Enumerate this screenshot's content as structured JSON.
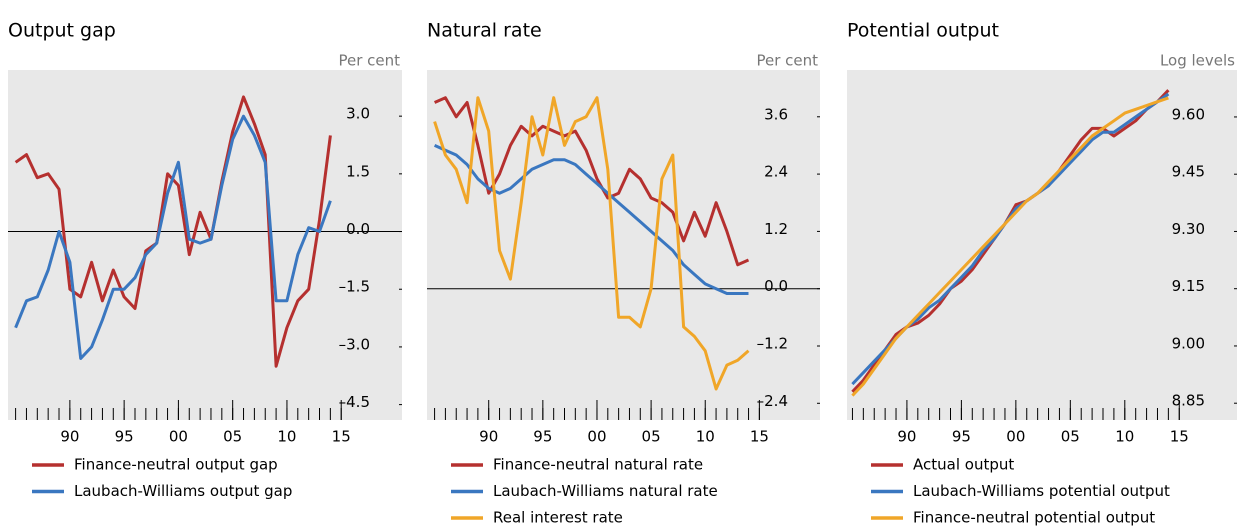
{
  "chart_data": [
    {
      "type": "line",
      "title": "Output gap",
      "unit_label": "Per cent",
      "x": [
        1985,
        1986,
        1987,
        1988,
        1989,
        1990,
        1991,
        1992,
        1993,
        1994,
        1995,
        1996,
        1997,
        1998,
        1999,
        2000,
        2001,
        2002,
        2003,
        2004,
        2005,
        2006,
        2007,
        2008,
        2009,
        2010,
        2011,
        2012,
        2013,
        2014
      ],
      "series": [
        {
          "name": "Finance-neutral output gap",
          "color": "#b5302f",
          "values": [
            1.8,
            2.0,
            1.4,
            1.5,
            1.1,
            -1.5,
            -1.7,
            -0.8,
            -1.8,
            -1.0,
            -1.7,
            -2.0,
            -0.5,
            -0.3,
            1.5,
            1.2,
            -0.6,
            0.5,
            -0.2,
            1.3,
            2.6,
            3.5,
            2.8,
            2.0,
            -3.5,
            -2.5,
            -1.8,
            -1.5,
            0.3,
            2.5
          ]
        },
        {
          "name": "Laubach-Williams output gap",
          "color": "#3a77c0",
          "values": [
            -2.5,
            -1.8,
            -1.7,
            -1.0,
            0.0,
            -0.8,
            -3.3,
            -3.0,
            -2.3,
            -1.5,
            -1.5,
            -1.2,
            -0.6,
            -0.3,
            1.0,
            1.8,
            -0.2,
            -0.3,
            -0.2,
            1.2,
            2.4,
            3.0,
            2.5,
            1.8,
            -1.8,
            -1.8,
            -0.6,
            0.1,
            0.0,
            0.8
          ]
        }
      ],
      "xlim": [
        1984.3,
        2020.6
      ],
      "xticks": [
        {
          "value": 1990,
          "label": "90"
        },
        {
          "value": 1995,
          "label": "95"
        },
        {
          "value": 2000,
          "label": "00"
        },
        {
          "value": 2005,
          "label": "05"
        },
        {
          "value": 2010,
          "label": "10"
        },
        {
          "value": 2015,
          "label": "15"
        }
      ],
      "xminorticks": [
        1985,
        1986,
        1987,
        1988,
        1989,
        1990,
        1991,
        1992,
        1993,
        1994,
        1995,
        1996,
        1997,
        1998,
        1999,
        2000,
        2001,
        2002,
        2003,
        2004,
        2005,
        2006,
        2007,
        2008,
        2009,
        2010,
        2011,
        2012,
        2013,
        2014,
        2015
      ],
      "ylim": [
        -4.9,
        4.2
      ],
      "yticks": [
        {
          "value": 3,
          "label": "3.0"
        },
        {
          "value": 1.5,
          "label": "1.5"
        },
        {
          "value": 0,
          "label": "0.0"
        },
        {
          "value": -1.5,
          "label": "–1.5"
        },
        {
          "value": -3,
          "label": "–3.0"
        },
        {
          "value": -4.5,
          "label": "–4.5"
        }
      ],
      "hline": 0
    },
    {
      "type": "line",
      "title": "Natural rate",
      "unit_label": "Per cent",
      "x": [
        1985,
        1986,
        1987,
        1988,
        1989,
        1990,
        1991,
        1992,
        1993,
        1994,
        1995,
        1996,
        1997,
        1998,
        1999,
        2000,
        2001,
        2002,
        2003,
        2004,
        2005,
        2006,
        2007,
        2008,
        2009,
        2010,
        2011,
        2012,
        2013,
        2014
      ],
      "series": [
        {
          "name": "Finance-neutral natural rate",
          "color": "#b5302f",
          "values": [
            3.9,
            4.0,
            3.6,
            3.9,
            3.0,
            2.0,
            2.4,
            3.0,
            3.4,
            3.2,
            3.4,
            3.3,
            3.2,
            3.3,
            2.9,
            2.3,
            1.9,
            2.0,
            2.5,
            2.3,
            1.9,
            1.8,
            1.6,
            1.0,
            1.6,
            1.1,
            1.8,
            1.2,
            0.5,
            0.6
          ]
        },
        {
          "name": "Laubach-Williams natural rate",
          "color": "#3a77c0",
          "values": [
            3.0,
            2.9,
            2.8,
            2.6,
            2.3,
            2.1,
            2.0,
            2.1,
            2.3,
            2.5,
            2.6,
            2.7,
            2.7,
            2.6,
            2.4,
            2.2,
            2.0,
            1.8,
            1.6,
            1.4,
            1.2,
            1.0,
            0.8,
            0.5,
            0.3,
            0.1,
            0.0,
            -0.1,
            -0.1,
            -0.1
          ]
        },
        {
          "name": "Real interest rate",
          "color": "#f0a628",
          "values": [
            3.5,
            2.8,
            2.5,
            1.8,
            4.0,
            3.3,
            0.8,
            0.2,
            1.8,
            3.6,
            2.8,
            4.0,
            3.0,
            3.5,
            3.6,
            4.0,
            2.5,
            -0.6,
            -0.6,
            -0.8,
            0.0,
            2.3,
            2.8,
            -0.8,
            -1.0,
            -1.3,
            -2.1,
            -1.6,
            -1.5,
            -1.3
          ]
        }
      ],
      "xlim": [
        1984.3,
        2020.6
      ],
      "xticks": [
        {
          "value": 1990,
          "label": "90"
        },
        {
          "value": 1995,
          "label": "95"
        },
        {
          "value": 2000,
          "label": "00"
        },
        {
          "value": 2005,
          "label": "05"
        },
        {
          "value": 2010,
          "label": "10"
        },
        {
          "value": 2015,
          "label": "15"
        }
      ],
      "xminorticks": [
        1985,
        1986,
        1987,
        1988,
        1989,
        1990,
        1991,
        1992,
        1993,
        1994,
        1995,
        1996,
        1997,
        1998,
        1999,
        2000,
        2001,
        2002,
        2003,
        2004,
        2005,
        2006,
        2007,
        2008,
        2009,
        2010,
        2011,
        2012,
        2013,
        2014,
        2015
      ],
      "ylim": [
        -2.75,
        4.58
      ],
      "yticks": [
        {
          "value": 3.6,
          "label": "3.6"
        },
        {
          "value": 2.4,
          "label": "2.4"
        },
        {
          "value": 1.2,
          "label": "1.2"
        },
        {
          "value": 0,
          "label": "0.0"
        },
        {
          "value": -1.2,
          "label": "–1.2"
        },
        {
          "value": -2.4,
          "label": "–2.4"
        }
      ],
      "hline": 0
    },
    {
      "type": "line",
      "title": "Potential output",
      "unit_label": "Log levels",
      "x": [
        1985,
        1986,
        1987,
        1988,
        1989,
        1990,
        1991,
        1992,
        1993,
        1994,
        1995,
        1996,
        1997,
        1998,
        1999,
        2000,
        2001,
        2002,
        2003,
        2004,
        2005,
        2006,
        2007,
        2008,
        2009,
        2010,
        2011,
        2012,
        2013,
        2014
      ],
      "series": [
        {
          "name": "Actual output",
          "color": "#b5302f",
          "values": [
            8.88,
            8.91,
            8.95,
            8.99,
            9.03,
            9.05,
            9.06,
            9.08,
            9.11,
            9.15,
            9.17,
            9.2,
            9.24,
            9.28,
            9.32,
            9.37,
            9.38,
            9.4,
            9.42,
            9.46,
            9.5,
            9.54,
            9.57,
            9.57,
            9.55,
            9.57,
            9.59,
            9.62,
            9.64,
            9.67
          ]
        },
        {
          "name": "Laubach-Williams potential output",
          "color": "#3a77c0",
          "values": [
            8.9,
            8.93,
            8.96,
            8.99,
            9.02,
            9.05,
            9.07,
            9.1,
            9.12,
            9.15,
            9.18,
            9.21,
            9.25,
            9.28,
            9.32,
            9.36,
            9.38,
            9.4,
            9.42,
            9.45,
            9.48,
            9.51,
            9.54,
            9.56,
            9.56,
            9.58,
            9.6,
            9.62,
            9.64,
            9.66
          ]
        },
        {
          "name": "Finance-neutral potential output",
          "color": "#f0a628",
          "values": [
            8.87,
            8.9,
            8.94,
            8.98,
            9.02,
            9.05,
            9.08,
            9.11,
            9.14,
            9.17,
            9.2,
            9.23,
            9.26,
            9.29,
            9.32,
            9.35,
            9.38,
            9.4,
            9.43,
            9.46,
            9.49,
            9.52,
            9.55,
            9.57,
            9.59,
            9.61,
            9.62,
            9.63,
            9.64,
            9.65
          ]
        }
      ],
      "xlim": [
        1984.5,
        2020.3
      ],
      "xticks": [
        {
          "value": 1990,
          "label": "90"
        },
        {
          "value": 1995,
          "label": "95"
        },
        {
          "value": 2000,
          "label": "00"
        },
        {
          "value": 2005,
          "label": "05"
        },
        {
          "value": 2010,
          "label": "10"
        },
        {
          "value": 2015,
          "label": "15"
        }
      ],
      "xminorticks": [
        1985,
        1986,
        1987,
        1988,
        1989,
        1990,
        1991,
        1992,
        1993,
        1994,
        1995,
        1996,
        1997,
        1998,
        1999,
        2000,
        2001,
        2002,
        2003,
        2004,
        2005,
        2006,
        2007,
        2008,
        2009,
        2010,
        2011,
        2012,
        2013,
        2014,
        2015
      ],
      "ylim": [
        8.806,
        9.723
      ],
      "yticks": [
        {
          "value": 9.6,
          "label": "9.60"
        },
        {
          "value": 9.45,
          "label": "9.45"
        },
        {
          "value": 9.3,
          "label": "9.30"
        },
        {
          "value": 9.15,
          "label": "9.15"
        },
        {
          "value": 9,
          "label": "9.00"
        },
        {
          "value": 8.85,
          "label": "8.85"
        }
      ]
    }
  ]
}
